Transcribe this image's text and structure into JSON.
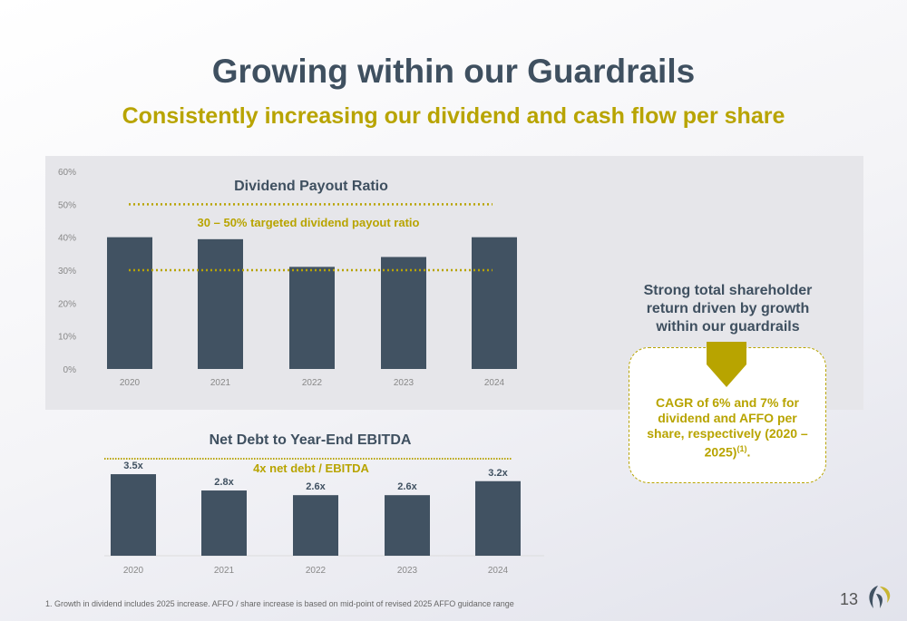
{
  "title": "Growing within our Guardrails",
  "subtitle": "Consistently increasing our dividend and cash flow per share",
  "side_text": "Strong total shareholder return driven by growth within our guardrails",
  "box_text": "CAGR of 6% and 7% for dividend and AFFO per share, respectively (2020 – 2025)",
  "box_sup": "(1)",
  "box_end": ".",
  "footnote": "1.     Growth in dividend includes 2025 increase. AFFO / share increase is based on mid-point of revised 2025 AFFO guidance range",
  "page_number": "13",
  "colors": {
    "bar": "#415262",
    "accent": "#b8a400",
    "text": "#3f5060"
  },
  "chart_data": [
    {
      "type": "bar",
      "title": "Dividend Payout Ratio",
      "categories": [
        "2020",
        "2021",
        "2022",
        "2023",
        "2024"
      ],
      "values": [
        40,
        39.4,
        31,
        34,
        40
      ],
      "ylim": [
        0,
        60
      ],
      "yticks": [
        "0%",
        "10%",
        "20%",
        "30%",
        "40%",
        "50%",
        "60%"
      ],
      "ytick_values": [
        0,
        10,
        20,
        30,
        40,
        50,
        60
      ],
      "reference_lines": [
        30,
        50
      ],
      "annotation": "30 – 50% targeted dividend payout ratio",
      "unit": "%"
    },
    {
      "type": "bar",
      "title": "Net Debt to Year-End EBITDA",
      "categories": [
        "2020",
        "2021",
        "2022",
        "2023",
        "2024"
      ],
      "values": [
        3.5,
        2.8,
        2.6,
        2.6,
        3.2
      ],
      "labels": [
        "3.5x",
        "2.8x",
        "2.6x",
        "2.6x",
        "3.2x"
      ],
      "reference_lines": [
        4
      ],
      "annotation": "4x net debt / EBITDA",
      "ylim": [
        0,
        4.2
      ]
    }
  ]
}
